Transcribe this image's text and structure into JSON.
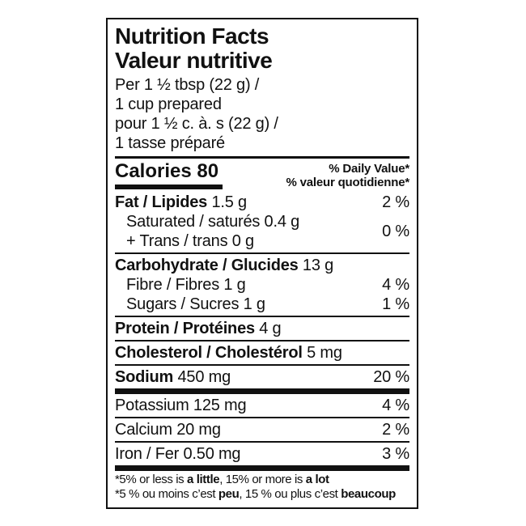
{
  "label": {
    "title_en": "Nutrition Facts",
    "title_fr": "Valeur nutritive",
    "serving": {
      "line1": "Per 1 ½ tbsp (22 g) /",
      "line2": "1 cup prepared",
      "line3": "pour 1 ½ c. à. s (22 g) /",
      "line4": "1 tasse préparé"
    },
    "calories": {
      "text": "Calories 80"
    },
    "daily_value": {
      "en": "% Daily Value*",
      "fr": "% valeur quotidienne*"
    },
    "rows": {
      "fat": {
        "name": "Fat / Lipides",
        "value": " 1.5 g",
        "pct": "2 %"
      },
      "saturated": {
        "line1": "Saturated / saturés 0.4 g",
        "line2": "+ Trans / trans 0 g",
        "pct": "0 %"
      },
      "carbohydrate": {
        "name": "Carbohydrate / Glucides",
        "value": " 13 g"
      },
      "fibre": {
        "text": "Fibre / Fibres 1 g",
        "pct": "4 %"
      },
      "sugars": {
        "text": "Sugars / Sucres 1 g",
        "pct": "1 %"
      },
      "protein": {
        "name": "Protein / Protéines",
        "value": " 4 g"
      },
      "cholesterol": {
        "name": "Cholesterol / Cholestérol",
        "value": " 5 mg"
      },
      "sodium": {
        "name": "Sodium",
        "value": " 450 mg",
        "pct": "20 %"
      },
      "potassium": {
        "text": "Potassium 125 mg",
        "pct": "4 %"
      },
      "calcium": {
        "text": "Calcium 20 mg",
        "pct": "2 %"
      },
      "iron": {
        "text": "Iron / Fer 0.50 mg",
        "pct": "3 %"
      }
    },
    "footnote_en": {
      "p1": "*5% or less is ",
      "b1": "a little",
      "p2": ", 15% or more is ",
      "b2": "a lot"
    },
    "footnote_fr": {
      "p1": "*5 % ou moins c’est ",
      "b1": "peu",
      "p2": ", 15 % ou plus c’est ",
      "b2": "beaucoup"
    },
    "colors": {
      "ink": "#111111",
      "background": "#ffffff"
    }
  }
}
